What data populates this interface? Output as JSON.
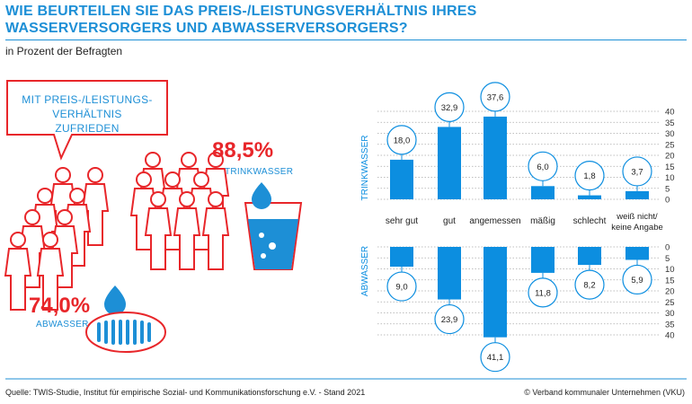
{
  "title": "WIE BEURTEILEN SIE DAS PREIS-/LEISTUNGSVERHÄLTNIS IHRES WASSERVERSORGERS UND ABWASSERVERSORGERS?",
  "subtitle": "in Prozent der Befragten",
  "bubble_text": "MIT PREIS-/LEISTUNGS-VERHÄLTNIS ZUFRIEDEN",
  "trinkwasser_pct": "88,5%",
  "trinkwasser_label": "TRINKWASSER",
  "abwasser_pct": "74,0%",
  "abwasser_label": "ABWASSER",
  "source": "Quelle: TWIS-Studie, Institut für empirische Sozial- und Kommunikationsforschung e.V. - Stand 2021",
  "copyright": "© Verband kommunaler Unternehmen (VKU)",
  "colors": {
    "accent_blue": "#1d8fd6",
    "bar_blue": "#0c8ee0",
    "accent_red": "#e8262a"
  },
  "chart_data": [
    {
      "type": "bar",
      "ylabel": "TRINKWASSER",
      "categories": [
        "sehr gut",
        "gut",
        "angemessen",
        "mäßig",
        "schlecht",
        "weiß nicht/ keine Angabe"
      ],
      "values": [
        18.0,
        32.9,
        37.6,
        6.0,
        1.8,
        3.7
      ],
      "value_labels": [
        "18,0",
        "32,9",
        "37,6",
        "6,0",
        "1,8",
        "3,7"
      ],
      "ylim": [
        0,
        40
      ],
      "yticks": [
        "0",
        "5",
        "10",
        "15",
        "20",
        "25",
        "30",
        "35",
        "40"
      ],
      "grid": true
    },
    {
      "type": "bar",
      "ylabel": "ABWASSER",
      "categories": [
        "sehr gut",
        "gut",
        "angemessen",
        "mäßig",
        "schlecht",
        "weiß nicht/ keine Angabe"
      ],
      "values": [
        9.0,
        23.9,
        41.1,
        11.8,
        8.2,
        5.9
      ],
      "value_labels": [
        "9,0",
        "23,9",
        "41,1",
        "11,8",
        "8,2",
        "5,9"
      ],
      "ylim": [
        0,
        40
      ],
      "yticks": [
        "0",
        "5",
        "10",
        "15",
        "20",
        "25",
        "30",
        "35",
        "40"
      ],
      "grid": true
    }
  ]
}
